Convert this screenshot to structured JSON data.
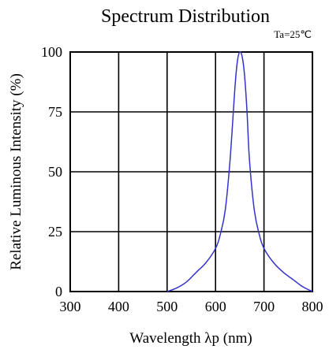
{
  "chart_data": {
    "type": "line",
    "title": "Spectrum Distribution",
    "subtitle": "Ta=25℃",
    "xlabel": "Wavelength λp (nm)",
    "ylabel": "Relative Luminous Intensity (%)",
    "xlim": [
      300,
      800
    ],
    "ylim": [
      0,
      100
    ],
    "xticks": [
      300,
      400,
      500,
      600,
      700,
      800
    ],
    "yticks": [
      0,
      25,
      50,
      75,
      100
    ],
    "grid": true,
    "series_color": "#3333cc",
    "series": [
      {
        "x": [
          500,
          520,
          540,
          560,
          580,
          600,
          610,
          620,
          630,
          640,
          645,
          650,
          655,
          660,
          665,
          670,
          680,
          690,
          700,
          720,
          740,
          760,
          780,
          800
        ],
        "values": [
          0,
          1.5,
          4,
          8,
          12,
          18,
          24,
          34,
          55,
          85,
          96,
          100,
          98,
          90,
          75,
          55,
          34,
          24,
          18,
          12,
          8,
          5,
          2,
          0
        ]
      }
    ]
  }
}
